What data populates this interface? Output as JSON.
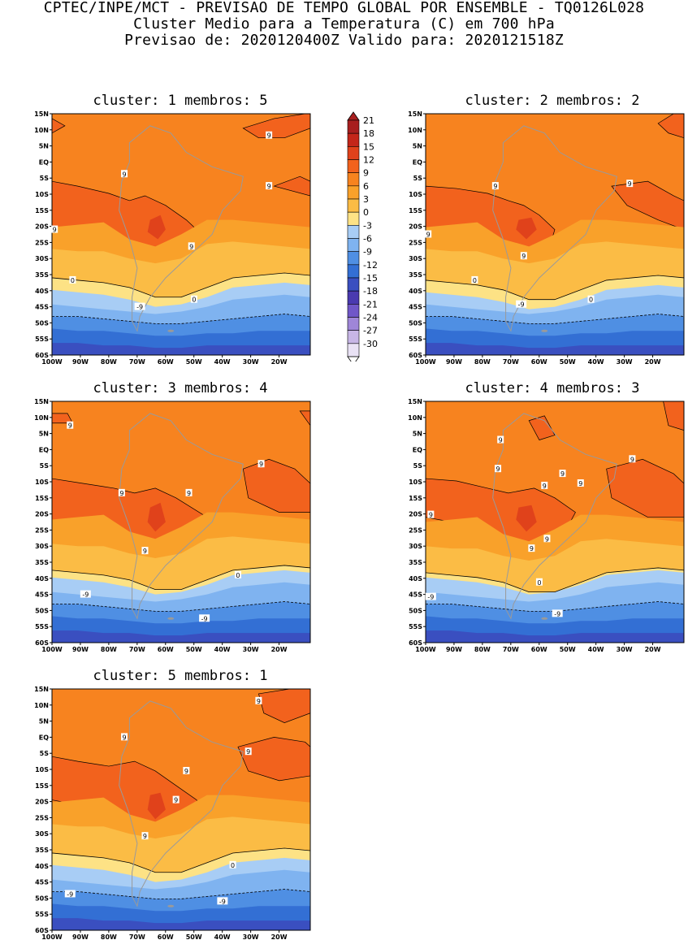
{
  "header": {
    "line1": "CPTEC/INPE/MCT - PREVISAO DE TEMPO GLOBAL POR ENSEMBLE - TQ0126L028",
    "line2": "Cluster Medio para a Temperatura (C) em 700 hPa",
    "line3": "Previsao de: 2020120400Z   Valido para: 2020121518Z"
  },
  "panels": [
    {
      "title": "cluster: 1  membros: 5"
    },
    {
      "title": "cluster: 2  membros: 2"
    },
    {
      "title": "cluster: 3  membros: 4"
    },
    {
      "title": "cluster: 4  membros: 3"
    },
    {
      "title": "cluster: 5  membros: 1"
    }
  ],
  "axes": {
    "lat_labels": [
      "15N",
      "10N",
      "5N",
      "EQ",
      "5S",
      "10S",
      "15S",
      "20S",
      "25S",
      "30S",
      "35S",
      "40S",
      "45S",
      "50S",
      "55S",
      "60S"
    ],
    "lon_labels": [
      "100W",
      "90W",
      "80W",
      "70W",
      "60W",
      "50W",
      "40W",
      "30W",
      "20W"
    ]
  },
  "colorbar": {
    "levels": [
      "21",
      "18",
      "15",
      "12",
      "9",
      "6",
      "3",
      "0",
      "-3",
      "-6",
      "-9",
      "-12",
      "-15",
      "-18",
      "-21",
      "-24",
      "-27",
      "-30"
    ],
    "colors": [
      "#a81f1f",
      "#c4261a",
      "#e0421b",
      "#f2621d",
      "#f7831f",
      "#f9a12a",
      "#fbbc45",
      "#fde285",
      "#a8cdf5",
      "#7fb3f0",
      "#4f8fe3",
      "#336fd4",
      "#3a4fc0",
      "#4a3ab0",
      "#7057c8",
      "#9f86d8",
      "#c7b6e6",
      "#e9e2f5"
    ]
  },
  "contour_labels": {
    "p1": [
      "9",
      "9",
      "9",
      "9",
      "9",
      "0",
      "0",
      "-9"
    ],
    "p2": [
      "9",
      "9",
      "9",
      "9",
      "0",
      "0",
      "-9"
    ],
    "p3": [
      "9",
      "9",
      "9",
      "9",
      "9",
      "0",
      "-9",
      "-9"
    ],
    "p4": [
      "9",
      "9",
      "9",
      "9",
      "9",
      "9",
      "9",
      "9",
      "9",
      "0",
      "-9",
      "-9"
    ],
    "p5": [
      "9",
      "9",
      "9",
      "9",
      "9",
      "9",
      "0",
      "-9",
      "-9"
    ]
  }
}
